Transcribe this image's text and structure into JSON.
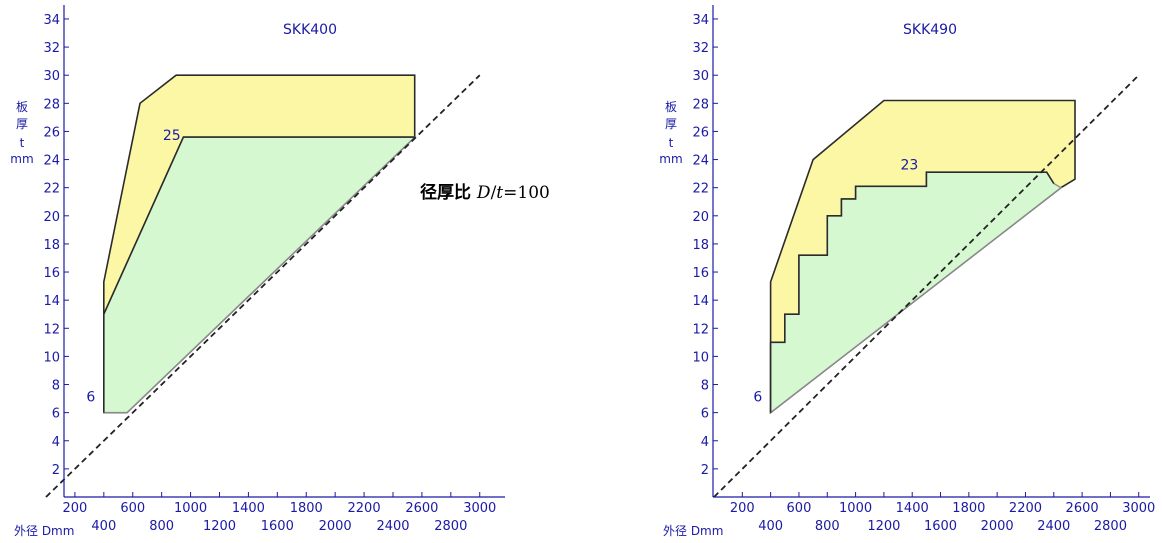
{
  "colors": {
    "axis": "#1a1aa6",
    "outer_fill": "#fbf7a4",
    "inner_fill": "#d6f8d1",
    "outline": "#2b2b2b",
    "inner_outline": "#8c8c8c",
    "dashed_line": "#222222"
  },
  "chart_data": [
    {
      "type": "area",
      "title": "SKK400",
      "xlabel": "外径 Dmm",
      "ylabel_chars": [
        "板",
        "厚",
        "t",
        "mm"
      ],
      "xlim": [
        0,
        3100
      ],
      "ylim": [
        0,
        35
      ],
      "x_ticks_upper": [
        200,
        600,
        1000,
        1400,
        1800,
        2200,
        2600,
        3000
      ],
      "x_ticks_lower": [
        400,
        800,
        1200,
        1600,
        2000,
        2400,
        2800
      ],
      "y_ticks": [
        2,
        4,
        6,
        8,
        10,
        12,
        14,
        16,
        18,
        20,
        22,
        24,
        26,
        28,
        30,
        32,
        34
      ],
      "outer_region": [
        [
          400,
          6
        ],
        [
          400,
          15.3
        ],
        [
          650,
          28
        ],
        [
          900,
          30
        ],
        [
          2550,
          30
        ],
        [
          2550,
          25.6
        ],
        [
          560,
          6
        ]
      ],
      "inner_region": [
        [
          400,
          6
        ],
        [
          400,
          13
        ],
        [
          950,
          25.6
        ],
        [
          2550,
          25.6
        ],
        [
          560,
          6
        ]
      ],
      "point_labels": [
        {
          "text": "25",
          "x": 870,
          "y": 25.4
        },
        {
          "text": "6",
          "x": 310,
          "y": 6.8
        }
      ],
      "reference_line": {
        "style": "dashed",
        "points": [
          [
            0,
            0
          ],
          [
            3000,
            30
          ]
        ]
      },
      "annotation": {
        "prefix": "径厚比 ",
        "var1": "D",
        "slash": "/",
        "var2": "t",
        "suffix": "=100"
      }
    },
    {
      "type": "area",
      "title": "SKK490",
      "xlabel": "外径 Dmm",
      "ylabel_chars": [
        "板",
        "厚",
        "t",
        "mm"
      ],
      "xlim": [
        0,
        3100
      ],
      "ylim": [
        0,
        35
      ],
      "x_ticks_upper": [
        200,
        600,
        1000,
        1400,
        1800,
        2200,
        2600,
        3000
      ],
      "x_ticks_lower": [
        400,
        800,
        1200,
        1600,
        2000,
        2400,
        2800
      ],
      "y_ticks": [
        2,
        4,
        6,
        8,
        10,
        12,
        14,
        16,
        18,
        20,
        22,
        24,
        26,
        28,
        30,
        32,
        34
      ],
      "outer_region": [
        [
          400,
          6
        ],
        [
          400,
          15.3
        ],
        [
          700,
          24
        ],
        [
          1200,
          28.2
        ],
        [
          2550,
          28.2
        ],
        [
          2550,
          22.6
        ],
        [
          2450,
          22
        ]
      ],
      "inner_region": [
        [
          400,
          6
        ],
        [
          400,
          11
        ],
        [
          500,
          11
        ],
        [
          500,
          13
        ],
        [
          600,
          13
        ],
        [
          600,
          17.2
        ],
        [
          800,
          17.2
        ],
        [
          800,
          20
        ],
        [
          900,
          20
        ],
        [
          900,
          21.2
        ],
        [
          1000,
          21.2
        ],
        [
          1000,
          22.1
        ],
        [
          1500,
          22.1
        ],
        [
          1500,
          23.1
        ],
        [
          2350,
          23.1
        ],
        [
          2400,
          22.3
        ],
        [
          2450,
          22
        ]
      ],
      "point_labels": [
        {
          "text": "23",
          "x": 1380,
          "y": 23.3
        },
        {
          "text": "6",
          "x": 310,
          "y": 6.8
        }
      ],
      "reference_line": {
        "style": "dashed",
        "points": [
          [
            0,
            0
          ],
          [
            3000,
            30
          ]
        ]
      }
    }
  ]
}
